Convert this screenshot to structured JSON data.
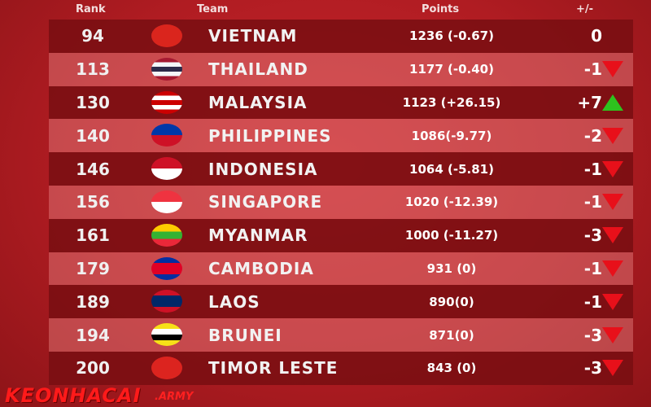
{
  "headers": {
    "rank": "Rank",
    "team": "Team",
    "points": "Points",
    "change": "+/-"
  },
  "watermark": {
    "brand": "KEONHACAI",
    "suffix": ".ARMY"
  },
  "colors": {
    "up": "#2ec21e",
    "down": "#e8101a"
  },
  "rows": [
    {
      "rank": "94",
      "team": "VIETNAM",
      "points": "1236 (-0.67)",
      "change": "0",
      "trend": "none",
      "flag": [
        "#da251d",
        "#da251d",
        "#da251d"
      ]
    },
    {
      "rank": "113",
      "team": "THAILAND",
      "points": "1177 (-0.40)",
      "change": "-1",
      "trend": "down",
      "flag": [
        "#a51931",
        "#f4f5f8",
        "#2d2a4a",
        "#f4f5f8",
        "#a51931"
      ]
    },
    {
      "rank": "130",
      "team": "MALAYSIA",
      "points": "1123 (+26.15)",
      "change": "+7",
      "trend": "up",
      "flag": [
        "#cc0001",
        "#ffffff",
        "#cc0001",
        "#ffffff",
        "#cc0001"
      ]
    },
    {
      "rank": "140",
      "team": "PHILIPPINES",
      "points": "1086(-9.77)",
      "change": "-2",
      "trend": "down",
      "flag": [
        "#0038a8",
        "#ce1126"
      ]
    },
    {
      "rank": "146",
      "team": "INDONESIA",
      "points": "1064 (-5.81)",
      "change": "-1",
      "trend": "down",
      "flag": [
        "#ce1126",
        "#ffffff"
      ]
    },
    {
      "rank": "156",
      "team": "SINGAPORE",
      "points": "1020 (-12.39)",
      "change": "-1",
      "trend": "down",
      "flag": [
        "#ef3340",
        "#ffffff"
      ]
    },
    {
      "rank": "161",
      "team": "MYANMAR",
      "points": "1000 (-11.27)",
      "change": "-3",
      "trend": "down",
      "flag": [
        "#fecb00",
        "#34b233",
        "#ea2839"
      ]
    },
    {
      "rank": "179",
      "team": "CAMBODIA",
      "points": "931 (0)",
      "change": "-1",
      "trend": "down",
      "flag": [
        "#032ea1",
        "#e00025",
        "#e00025",
        "#032ea1"
      ]
    },
    {
      "rank": "189",
      "team": "LAOS",
      "points": "890(0)",
      "change": "-1",
      "trend": "down",
      "flag": [
        "#ce1126",
        "#002868",
        "#002868",
        "#ce1126"
      ]
    },
    {
      "rank": "194",
      "team": "BRUNEI",
      "points": "871(0)",
      "change": "-3",
      "trend": "down",
      "flag": [
        "#f7e017",
        "#ffffff",
        "#000000",
        "#f7e017"
      ]
    },
    {
      "rank": "200",
      "team": "TIMOR LESTE",
      "points": "843 (0)",
      "change": "-3",
      "trend": "down",
      "flag": [
        "#dc241f",
        "#dc241f",
        "#dc241f"
      ]
    }
  ]
}
